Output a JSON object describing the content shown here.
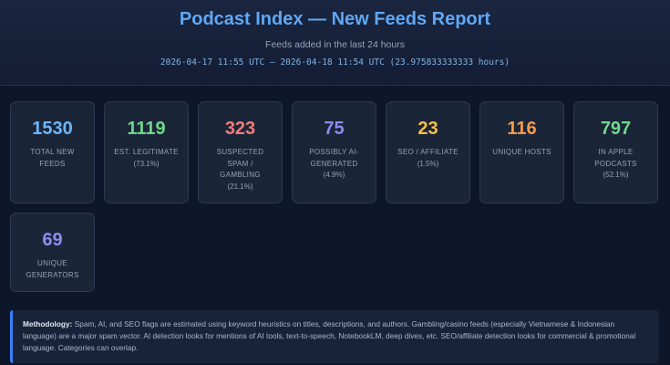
{
  "header": {
    "title": "Podcast Index — New Feeds Report",
    "subtitle": "Feeds added in the last 24 hours",
    "range": "2026-04-17 11:55 UTC – 2026-04-18 11:54 UTC  (23.975833333333 hours)"
  },
  "stats": [
    {
      "value": "1530",
      "label": "TOTAL NEW FEEDS",
      "pct": "",
      "color": "#6cb6ff"
    },
    {
      "value": "1119",
      "label": "EST. LEGITIMATE",
      "pct": "(73.1%)",
      "color": "#6fd88a"
    },
    {
      "value": "323",
      "label": "SUSPECTED SPAM / GAMBLING",
      "pct": "(21.1%)",
      "color": "#f27b7b"
    },
    {
      "value": "75",
      "label": "POSSIBLY AI-GENERATED",
      "pct": "(4.9%)",
      "color": "#8b8cf0"
    },
    {
      "value": "23",
      "label": "SEO / AFFILIATE",
      "pct": "(1.5%)",
      "color": "#f5c04a"
    },
    {
      "value": "116",
      "label": "UNIQUE HOSTS",
      "pct": "",
      "color": "#f59a4a"
    },
    {
      "value": "797",
      "label": "IN APPLE PODCASTS",
      "pct": "(52.1%)",
      "color": "#6fd88a"
    },
    {
      "value": "69",
      "label": "UNIQUE GENERATORS",
      "pct": "",
      "color": "#8b8cf0"
    }
  ],
  "methodology": {
    "heading": "Methodology:",
    "text": " Spam, AI, and SEO flags are estimated using keyword heuristics on titles, descriptions, and authors. Gambling/casino feeds (especially Vietnamese & Indonesian language) are a major spam vector. AI detection looks for mentions of AI tools, text-to-speech, NotebookLM, deep dives, etc. SEO/affiliate detection looks for commercial & promotional language. Categories can overlap."
  }
}
